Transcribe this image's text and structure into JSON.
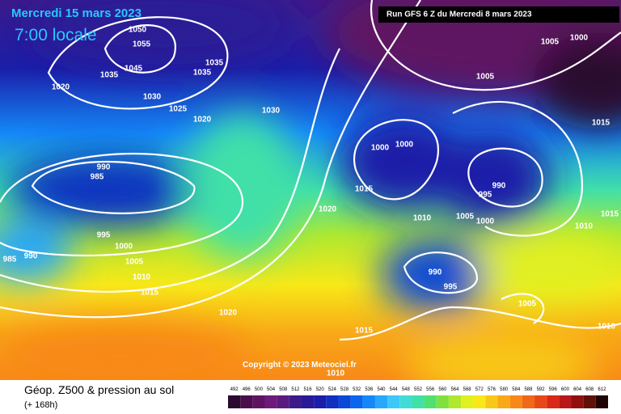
{
  "header": {
    "date": "Mercredi 15 mars 2023",
    "time": "7:00 locale",
    "run": "Run GFS 6 Z du Mercredi 8 mars 2023"
  },
  "copyright": "Copyright © 2023 Meteociel.fr",
  "footer": {
    "title": "Géop. Z500 & pression au sol",
    "lead": "(+ 168h)"
  },
  "scale": {
    "labels": [
      492,
      496,
      500,
      504,
      508,
      512,
      516,
      520,
      524,
      528,
      532,
      536,
      540,
      544,
      548,
      552,
      556,
      560,
      564,
      568,
      572,
      576,
      580,
      584,
      588,
      592,
      596,
      600,
      604,
      608,
      612
    ],
    "colors": [
      "#2a0a2e",
      "#4a0f4a",
      "#5e1462",
      "#6e1a7a",
      "#5a1a80",
      "#3c1a8a",
      "#2a1a96",
      "#1a1ea8",
      "#1030c0",
      "#0a48d8",
      "#0a66ee",
      "#1488f8",
      "#28a8fc",
      "#3cc8f8",
      "#40dcd8",
      "#40e0a8",
      "#50e070",
      "#80e040",
      "#b0e830",
      "#e0f020",
      "#f8e818",
      "#f8c818",
      "#f8a818",
      "#f88818",
      "#f06818",
      "#e84818",
      "#d82818",
      "#b81818",
      "#901010",
      "#601008",
      "#200404"
    ]
  },
  "isobars": [
    "1050",
    "1055",
    "1045",
    "1035",
    "1035",
    "1035",
    "1020",
    "1030",
    "1025",
    "1020",
    "1030",
    "990",
    "985",
    "995",
    "1000",
    "1005",
    "1010",
    "1015",
    "1020",
    "985",
    "990",
    "1020",
    "1015",
    "1010",
    "1000",
    "1000",
    "1005",
    "1000",
    "995",
    "990",
    "1005",
    "1005",
    "1000",
    "1015",
    "1015",
    "1010",
    "990",
    "995",
    "1005",
    "1010",
    "1015",
    "1010"
  ]
}
